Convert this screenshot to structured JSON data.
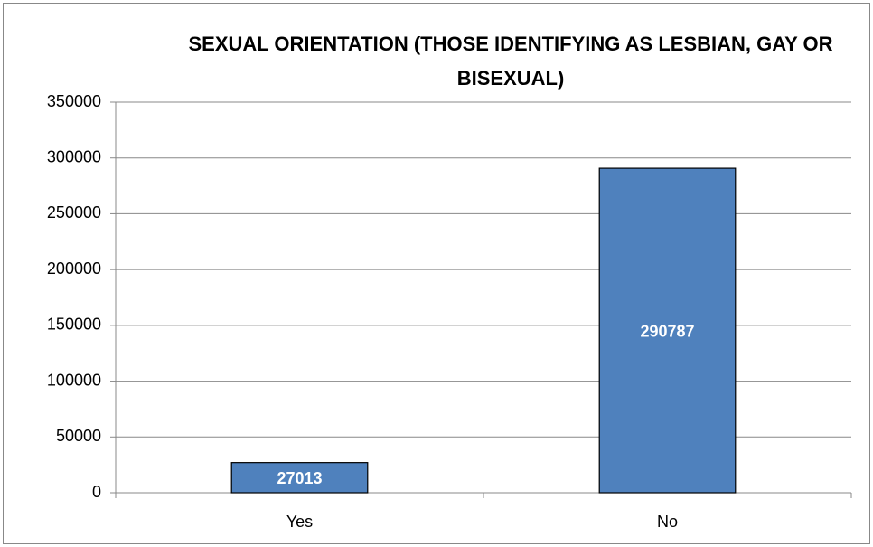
{
  "chart_data": {
    "type": "bar",
    "title": "SEXUAL ORIENTATION (THOSE IDENTIFYING AS LESBIAN, GAY OR BISEXUAL)",
    "categories": [
      "Yes",
      "No"
    ],
    "values": [
      27013,
      290787
    ],
    "color": "#4f81bd",
    "ylim": [
      0,
      350000
    ],
    "yticks": [
      0,
      50000,
      100000,
      150000,
      200000,
      250000,
      300000,
      350000
    ],
    "grid": true
  }
}
